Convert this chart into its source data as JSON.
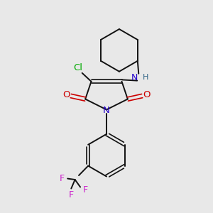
{
  "bg": "#e8e8e8",
  "bc": "#111111",
  "nc": "#2200cc",
  "oc": "#cc0000",
  "clc": "#00aa00",
  "fc": "#cc22cc",
  "nhc": "#2200cc",
  "lw": 1.4,
  "lw_db": 1.2,
  "figsize": [
    3.0,
    3.0
  ],
  "dpi": 100,
  "xlim": [
    0,
    10
  ],
  "ylim": [
    0,
    10
  ]
}
